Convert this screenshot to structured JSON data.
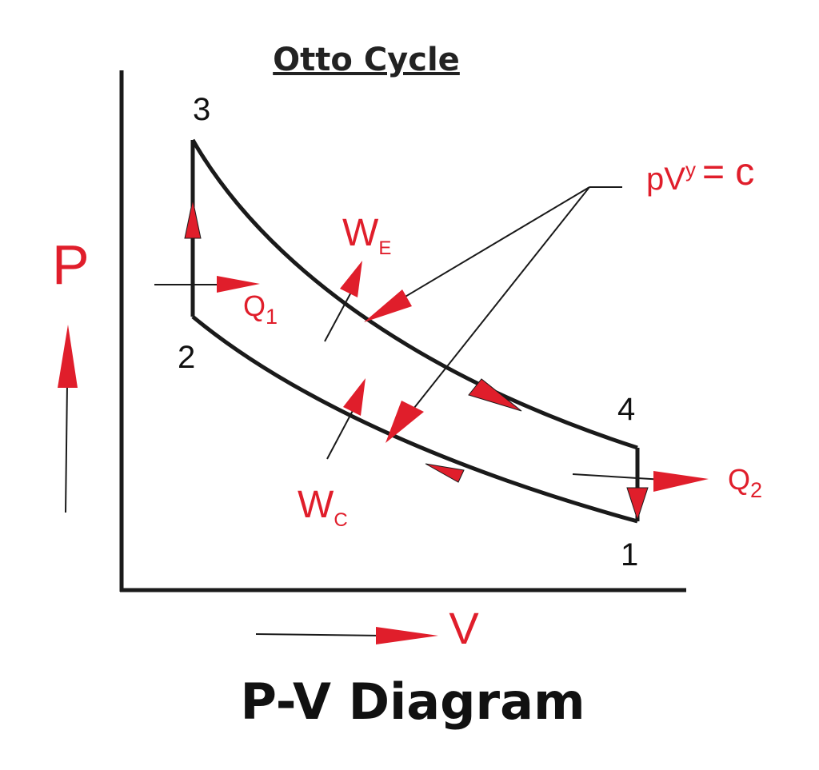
{
  "title": "Otto Cycle",
  "footer": "P-V Diagram",
  "axes": {
    "y_label": "P",
    "x_label": "V"
  },
  "points": {
    "p1": "1",
    "p2": "2",
    "p3": "3",
    "p4": "4"
  },
  "labels": {
    "q1_main": "Q",
    "q1_sub": "1",
    "q2_main": "Q",
    "q2_sub": "2",
    "we_main": "W",
    "we_sub": "E",
    "wc_main": "W",
    "wc_sub": "C",
    "eq_base": "pV",
    "eq_exp": "y",
    "eq_rest": "= c"
  },
  "colors": {
    "accent": "#e01e2b",
    "line": "#1a1a1a"
  }
}
